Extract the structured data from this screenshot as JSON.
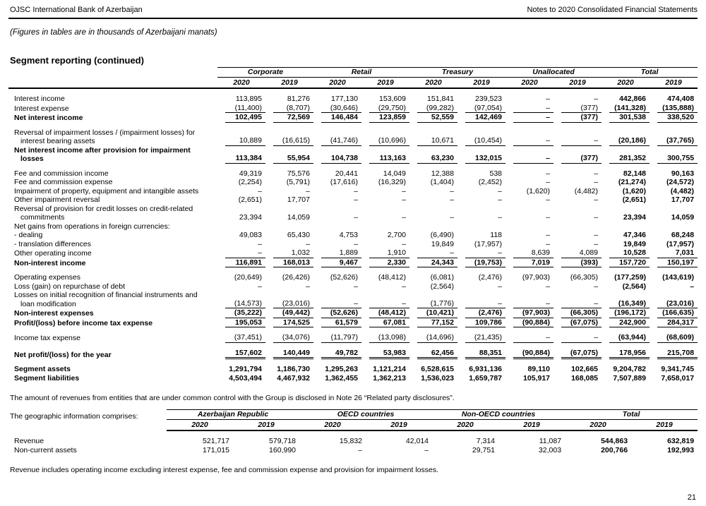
{
  "page": {
    "header_left": "OJSC International Bank of Azerbaijan",
    "header_right": "Notes to 2020 Consolidated Financial Statements",
    "subtitle": "(Figures in tables are in thousands of Azerbaijani manats)",
    "section_title": "Segment reporting (continued)",
    "note_common_control": "The amount of revenues from entities that are under common control with the Group is disclosed in Note 26 “Related party disclosures”.",
    "note_geographic": "The geographic information comprises:",
    "note_revenue": "Revenue includes operating income excluding interest expense, fee and commission expense and provision for impairment losses.",
    "page_number": "21"
  },
  "segment_table": {
    "groups": [
      "Corporate",
      "Retail",
      "Treasury",
      "Unallocated",
      "Total"
    ],
    "years": [
      "2020",
      "2019",
      "2020",
      "2019",
      "2020",
      "2019",
      "2020",
      "2019",
      "2020",
      "2019"
    ],
    "rows": [
      {
        "label": "Interest income",
        "values": [
          "113,895",
          "81,276",
          "177,130",
          "153,609",
          "151,841",
          "239,523",
          "–",
          "–",
          "442,866",
          "474,408"
        ]
      },
      {
        "label": "Interest expense",
        "rule": "single",
        "values": [
          "(11,400)",
          "(8,707)",
          "(30,646)",
          "(29,750)",
          "(99,282)",
          "(97,054)",
          "–",
          "(377)",
          "(141,328)",
          "(135,888)"
        ]
      },
      {
        "label": "Net interest income",
        "bold": true,
        "rule": "single",
        "values": [
          "102,495",
          "72,569",
          "146,484",
          "123,859",
          "52,559",
          "142,469",
          "–",
          "(377)",
          "301,538",
          "338,520"
        ]
      },
      {
        "label": "Reversal of impairment losses / (impairment losses) for interest bearing assets",
        "gap": true,
        "rule": "single",
        "values": [
          "10,889",
          "(16,615)",
          "(41,746)",
          "(10,696)",
          "10,671",
          "(10,454)",
          "–",
          "–",
          "(20,186)",
          "(37,765)"
        ]
      },
      {
        "label": "Net interest income after provision for impairment losses",
        "bold": true,
        "rule": "single",
        "values": [
          "113,384",
          "55,954",
          "104,738",
          "113,163",
          "63,230",
          "132,015",
          "–",
          "(377)",
          "281,352",
          "300,755"
        ]
      },
      {
        "label": "Fee and commission income",
        "gap": true,
        "values": [
          "49,319",
          "75,576",
          "20,441",
          "14,049",
          "12,388",
          "538",
          "–",
          "–",
          "82,148",
          "90,163"
        ]
      },
      {
        "label": "Fee and commission expense",
        "values": [
          "(2,254)",
          "(5,791)",
          "(17,616)",
          "(16,329)",
          "(1,404)",
          "(2,452)",
          "–",
          "–",
          "(21,274)",
          "(24,572)"
        ]
      },
      {
        "label": "Impairment of property, equipment and intangible assets",
        "values": [
          "–",
          "–",
          "–",
          "–",
          "–",
          "–",
          "(1,620)",
          "(4,482)",
          "(1,620)",
          "(4,482)"
        ]
      },
      {
        "label": "Other impairment reversal",
        "values": [
          "(2,651)",
          "17,707",
          "–",
          "–",
          "–",
          "–",
          "–",
          "–",
          "(2,651)",
          "17,707"
        ]
      },
      {
        "label": "Reversal of provision for credit losses on credit-related commitments",
        "values": [
          "23,394",
          "14,059",
          "–",
          "–",
          "–",
          "–",
          "–",
          "–",
          "23,394",
          "14,059"
        ]
      },
      {
        "label": "Net gains from operations in foreign currencies:",
        "values": [
          "",
          "",
          "",
          "",
          "",
          "",
          "",
          "",
          "",
          ""
        ]
      },
      {
        "label": "- dealing",
        "values": [
          "49,083",
          "65,430",
          "4,753",
          "2,700",
          "(6,490)",
          "118",
          "–",
          "–",
          "47,346",
          "68,248"
        ]
      },
      {
        "label": "- translation differences",
        "values": [
          "–",
          "–",
          "–",
          "–",
          "19,849",
          "(17,957)",
          "–",
          "–",
          "19,849",
          "(17,957)"
        ]
      },
      {
        "label": "Other operating income",
        "rule": "single",
        "values": [
          "–",
          "1,032",
          "1,889",
          "1,910",
          "–",
          "–",
          "8,639",
          "4,089",
          "10,528",
          "7,031"
        ]
      },
      {
        "label": "Non-interest income",
        "bold": true,
        "rule": "single",
        "values": [
          "116,891",
          "168,013",
          "9,467",
          "2,330",
          "24,343",
          "(19,753)",
          "7,019",
          "(393)",
          "157,720",
          "150,197"
        ]
      },
      {
        "label": "Operating expenses",
        "gap": true,
        "values": [
          "(20,649)",
          "(26,426)",
          "(52,626)",
          "(48,412)",
          "(6,081)",
          "(2,476)",
          "(97,903)",
          "(66,305)",
          "(177,259)",
          "(143,619)"
        ]
      },
      {
        "label": "Loss (gain) on repurchase of debt",
        "values": [
          "–",
          "–",
          "–",
          "–",
          "(2,564)",
          "–",
          "–",
          "–",
          "(2,564)",
          "–"
        ]
      },
      {
        "label": "Losses on initial recognition of financial instruments and loan modification",
        "rule": "single",
        "values": [
          "(14,573)",
          "(23,016)",
          "–",
          "–",
          "(1,776)",
          "–",
          "–",
          "–",
          "(16,349)",
          "(23,016)"
        ]
      },
      {
        "label": "Non-interest expenses",
        "bold": true,
        "rule": "single",
        "values": [
          "(35,222)",
          "(49,442)",
          "(52,626)",
          "(48,412)",
          "(10,421)",
          "(2,476)",
          "(97,903)",
          "(66,305)",
          "(196,172)",
          "(166,635)"
        ]
      },
      {
        "label": "Profit/(loss) before income tax expense",
        "bold": true,
        "rule": "single",
        "values": [
          "195,053",
          "174,525",
          "61,579",
          "67,081",
          "77,152",
          "109,786",
          "(90,884)",
          "(67,075)",
          "242,900",
          "284,317"
        ]
      },
      {
        "label": "Income tax expense",
        "gap": true,
        "rule": "single",
        "values": [
          "(37,451)",
          "(34,076)",
          "(11,797)",
          "(13,098)",
          "(14,696)",
          "(21,435)",
          "–",
          "–",
          "(63,944)",
          "(68,609)"
        ]
      },
      {
        "label": "Net profit/(loss) for the year",
        "gap": true,
        "bold": true,
        "rule": "double",
        "values": [
          "157,602",
          "140,449",
          "49,782",
          "53,983",
          "62,456",
          "88,351",
          "(90,884)",
          "(67,075)",
          "178,956",
          "215,708"
        ]
      },
      {
        "label": "Segment assets",
        "gap": true,
        "bold": true,
        "values": [
          "1,291,794",
          "1,186,730",
          "1,295,263",
          "1,121,214",
          "6,528,615",
          "6,931,136",
          "89,110",
          "102,665",
          "9,204,782",
          "9,341,745"
        ]
      },
      {
        "label": "Segment liabilities",
        "bold": true,
        "values": [
          "4,503,494",
          "4,467,932",
          "1,362,455",
          "1,362,213",
          "1,536,023",
          "1,659,787",
          "105,917",
          "168,085",
          "7,507,889",
          "7,658,017"
        ]
      }
    ]
  },
  "geo_table": {
    "groups": [
      "Azerbaijan Republic",
      "OECD countries",
      "Non-OECD countries",
      "Total"
    ],
    "years": [
      "2020",
      "2019",
      "2020",
      "2019",
      "2020",
      "2019",
      "2020",
      "2019"
    ],
    "rows": [
      {
        "label": "Revenue",
        "values": [
          "521,717",
          "579,718",
          "15,832",
          "42,014",
          "7,314",
          "11,087",
          "544,863",
          "632,819"
        ]
      },
      {
        "label": "Non-current assets",
        "values": [
          "171,015",
          "160,990",
          "–",
          "–",
          "29,751",
          "32,003",
          "200,766",
          "192,993"
        ]
      }
    ]
  }
}
